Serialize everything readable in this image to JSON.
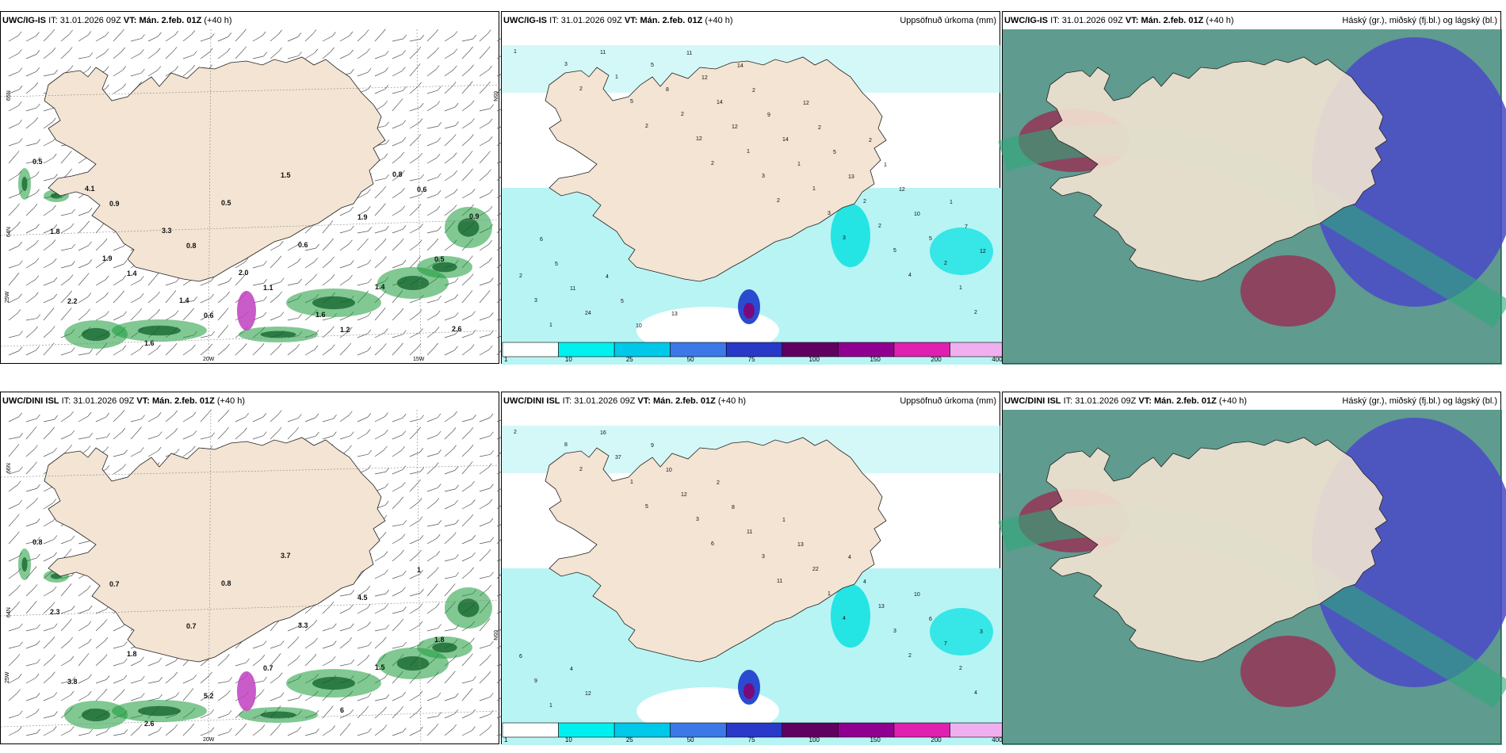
{
  "panels": [
    {
      "id": "ig-wind",
      "model": "UWC/IG-IS",
      "it_label": "IT:",
      "it": "31.01.2026 09Z",
      "vt_label": "VT:",
      "vt": "Mán. 2.feb. 01Z",
      "lead": "(+40 h)",
      "right_title": "",
      "lat_labels": [
        "65N",
        "64N",
        "65N"
      ],
      "lon_labels": [
        "20W",
        "15W",
        "25W"
      ],
      "values": [
        "0.5",
        "0.9",
        "0.8",
        "1.1",
        "1.2",
        "0.6",
        "1.8",
        "1.4",
        "0.6",
        "1.5",
        "1.9",
        "0.5",
        "2.2",
        "1.6",
        "0.5",
        "0.6",
        "1.4",
        "2.6",
        "4.1",
        "3.3",
        "2.0",
        "1.6",
        "0.8",
        "0.9",
        "1.9",
        "1.4"
      ]
    },
    {
      "id": "ig-precip",
      "model": "UWC/IG-IS",
      "it_label": "IT:",
      "it": "31.01.2026 09Z",
      "vt_label": "VT:",
      "vt": "Mán. 2.feb. 01Z",
      "lead": "(+40 h)",
      "right_title": "Uppsöfnuð úrkoma (mm)",
      "colorbar": [
        "1",
        "10",
        "25",
        "50",
        "75",
        "100",
        "150",
        "200",
        "400"
      ],
      "values": [
        "1",
        "2",
        "2",
        "2",
        "2",
        "3",
        "4",
        "2",
        "3",
        "5",
        "12",
        "3",
        "3",
        "5",
        "1",
        "1",
        "1",
        "2",
        "1",
        "1",
        "2",
        "2",
        "3",
        "11",
        "8",
        "12",
        "1",
        "2",
        "5",
        "2",
        "24",
        "5",
        "14",
        "14",
        "13",
        "10",
        "12",
        "11",
        "10",
        "12",
        "9",
        "5",
        "12",
        "7",
        "5",
        "5",
        "11",
        "2",
        "2",
        "1",
        "1",
        "6",
        "4",
        "13",
        "14",
        "12",
        "2"
      ]
    },
    {
      "id": "ig-cloud",
      "model": "UWC/IG-IS",
      "it_label": "IT:",
      "it": "31.01.2026 09Z",
      "vt_label": "VT:",
      "vt": "Mán. 2.feb. 01Z",
      "lead": "(+40 h)",
      "right_title": "Háský (gr.), miðský (fj.bl.) og lágský (bl.)"
    },
    {
      "id": "dini-wind",
      "model": "UWC/DINI ISL",
      "it_label": "IT:",
      "it": "31.01.2026 09Z",
      "vt_label": "VT:",
      "vt": "Mán. 2.feb. 01Z",
      "lead": "(+40 h)",
      "right_title": "",
      "lat_labels": [
        "66N",
        "64N",
        "65N"
      ],
      "lon_labels": [
        "20W",
        "25W"
      ],
      "values": [
        "0.8",
        "0.7",
        "0.7",
        "0.7",
        "6",
        "1",
        "2.3",
        "1.8",
        "5.2",
        "3.7",
        "4.5",
        "1.8",
        "3.8",
        "2.6",
        "0.8",
        "3.3",
        "1.5"
      ]
    },
    {
      "id": "dini-precip",
      "model": "UWC/DINI ISL",
      "it_label": "IT:",
      "it": "31.01.2026 09Z",
      "vt_label": "VT:",
      "vt": "Mán. 2.feb. 01Z",
      "lead": "(+40 h)",
      "right_title": "Uppsöfnuð úrkoma (mm)",
      "colorbar": [
        "1",
        "10",
        "25",
        "50",
        "75",
        "100",
        "150",
        "200",
        "400"
      ],
      "values": [
        "2",
        "2",
        "5",
        "6",
        "11",
        "4",
        "2",
        "4",
        "8",
        "1",
        "3",
        "3",
        "1",
        "3",
        "2",
        "1",
        "37",
        "12",
        "11",
        "22",
        "13",
        "7",
        "9",
        "16",
        "10",
        "8",
        "13",
        "4",
        "6",
        "6",
        "12",
        "9",
        "2",
        "1",
        "4",
        "10",
        "3",
        "4"
      ]
    },
    {
      "id": "dini-cloud",
      "model": "UWC/DINI ISL",
      "it_label": "IT:",
      "it": "31.01.2026 09Z",
      "vt_label": "VT:",
      "vt": "Mán. 2.feb. 01Z",
      "lead": "(+40 h)",
      "right_title": "Háský (gr.), miðský (fj.bl.) og lágský (bl.)"
    }
  ],
  "colors": {
    "land": "#f3e4d3",
    "coast": "#222222",
    "precip_light": "#b8f4f4",
    "precip_mid": "#00e0e0",
    "precip_deep": "#2a4bd0",
    "precip_max": "#7a0a7a",
    "wind_green": "#1a9a3a",
    "cloud_high": "#2ea87a",
    "cloud_mid": "#4a4ac8",
    "cloud_low": "#a0204a",
    "cloud_sea": "#2a7a6a"
  }
}
